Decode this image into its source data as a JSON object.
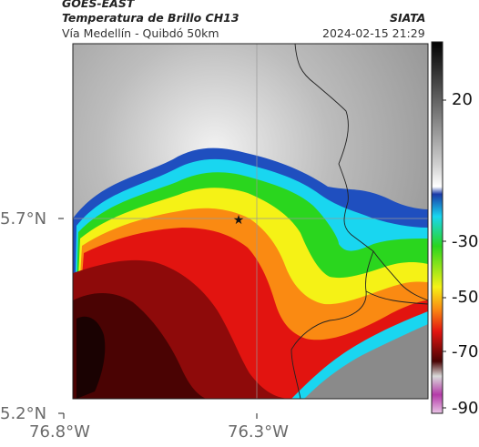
{
  "header": {
    "satellite": "GOES-EAST",
    "product": "Temperatura de Brillo CH13",
    "route": "Vía Medellín - Quibdó 50km",
    "agency": "SIATA",
    "datetime": "2024-02-15 21:29"
  },
  "axes": {
    "lat_ticks": [
      "5.7°N",
      "5.2°N"
    ],
    "lon_ticks": [
      "76.8°W",
      "76.3°W"
    ]
  },
  "colorbar": {
    "tick_labels": [
      "20",
      "-30",
      "-50",
      "-70",
      "-90"
    ],
    "unit_values": [
      20,
      -30,
      -50,
      -70,
      -90
    ]
  },
  "marker": {
    "icon": "star-icon"
  },
  "colors": {
    "blue": "#1f4fbf",
    "cyan": "#19d6f0",
    "green": "#2ad61e",
    "yellow": "#f5f216",
    "orange": "#fa8a12",
    "red": "#e21410",
    "darkred": "#6a0606",
    "magenta": "#b43aa8"
  }
}
